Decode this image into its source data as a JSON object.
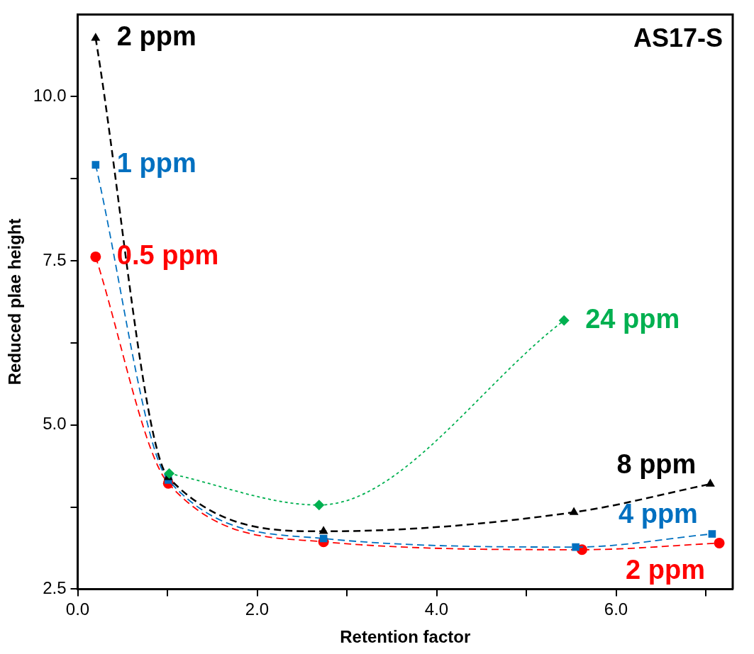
{
  "chart_data": {
    "type": "line",
    "title": "AS17-S",
    "xlabel": "Retention factor",
    "ylabel": "Reduced plae height",
    "xlim": [
      0,
      7.3
    ],
    "xticks": [
      {
        "value": 0,
        "label": "0.0"
      },
      {
        "value": 1,
        "label": null
      },
      {
        "value": 2,
        "label": "2.0"
      },
      {
        "value": 3,
        "label": null
      },
      {
        "value": 4,
        "label": "4.0"
      },
      {
        "value": 5,
        "label": null
      },
      {
        "value": 6,
        "label": "6.0"
      },
      {
        "value": 7,
        "label": null
      }
    ],
    "ylim": [
      2.5,
      11.25
    ],
    "yticks": [
      {
        "value": 2.5,
        "label": "2.5"
      },
      {
        "value": 3.75,
        "label": null
      },
      {
        "value": 5,
        "label": "5.0"
      },
      {
        "value": 6.25,
        "label": null
      },
      {
        "value": 7.5,
        "label": "7.5"
      },
      {
        "value": 8.75,
        "label": null
      },
      {
        "value": 10,
        "label": "10.0"
      }
    ],
    "grid": false,
    "legend": false,
    "series": [
      {
        "color": "#ff0000",
        "marker": "circle",
        "line_style": "dashed",
        "x": [
          0.2,
          1.01,
          2.74,
          5.62,
          7.15
        ],
        "values": [
          7.56,
          4.11,
          3.22,
          3.1,
          3.2
        ]
      },
      {
        "color": "#0070c0",
        "marker": "square",
        "line_style": "dashed",
        "x": [
          0.2,
          1.01,
          2.74,
          5.55,
          7.07
        ],
        "values": [
          8.96,
          4.16,
          3.27,
          3.14,
          3.34
        ]
      },
      {
        "color": "#000000",
        "marker": "triangle",
        "line_style": "dashed",
        "x": [
          0.2,
          1.01,
          2.74,
          5.53,
          7.05
        ],
        "values": [
          10.89,
          4.2,
          3.38,
          3.67,
          4.1
        ]
      },
      {
        "color": "#00b050",
        "marker": "diamond",
        "line_style": "dotted",
        "x": [
          1.02,
          2.69,
          5.42
        ],
        "values": [
          4.26,
          3.78,
          6.59
        ]
      }
    ],
    "annotations": [
      {
        "text": "2 ppm",
        "x": 0.2,
        "y": 10.89
      },
      {
        "text": "1 ppm",
        "x": 0.2,
        "y": 8.96
      },
      {
        "text": "0.5 ppm",
        "x": 0.2,
        "y": 7.56
      },
      {
        "text": "24 ppm",
        "x": 5.42,
        "y": 6.59
      },
      {
        "text": "8 ppm",
        "x": 7.05,
        "y": 4.1
      },
      {
        "text": "4 ppm",
        "x": 7.07,
        "y": 3.34
      },
      {
        "text": "2 ppm",
        "x": 7.15,
        "y": 3.2
      }
    ]
  }
}
